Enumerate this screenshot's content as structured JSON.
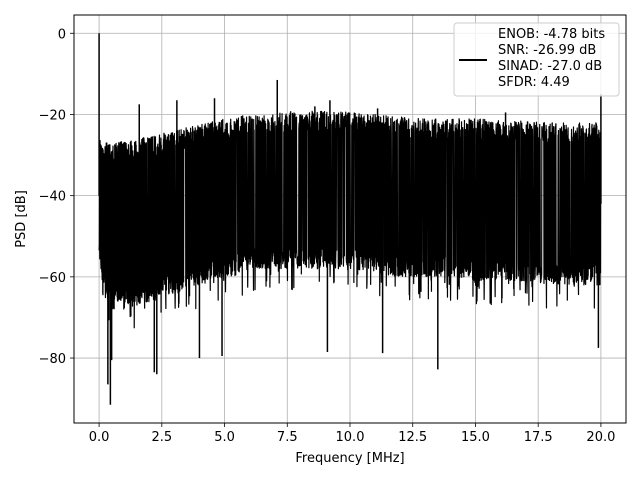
{
  "chart_data": {
    "type": "line",
    "title": "",
    "xlabel": "Frequency [MHz]",
    "ylabel": "PSD [dB]",
    "xlim": [
      -1.0,
      21.0
    ],
    "ylim": [
      -96.0,
      4.5
    ],
    "xticks": [
      0.0,
      2.5,
      5.0,
      7.5,
      10.0,
      12.5,
      15.0,
      17.5,
      20.0
    ],
    "xtick_labels": [
      "0.0",
      "2.5",
      "5.0",
      "7.5",
      "10.0",
      "12.5",
      "15.0",
      "17.5",
      "20.0"
    ],
    "yticks": [
      0,
      -20,
      -40,
      -60,
      -80
    ],
    "ytick_labels": [
      "0",
      "−20",
      "−40",
      "−60",
      "−80"
    ],
    "grid": true,
    "legend": {
      "placement": "top-right",
      "entries": [
        "ENOB: -4.78 bits",
        "SNR: -26.99 dB",
        "SINAD: -27.0 dB",
        "SFDR: 4.49"
      ]
    },
    "series": [
      {
        "color": "#000000",
        "upper_envelope": {
          "x": [
            0.0,
            0.2,
            0.5,
            1.0,
            2.0,
            3.0,
            4.0,
            5.0,
            6.0,
            7.0,
            8.0,
            9.0,
            10.0,
            11.0,
            12.0,
            13.0,
            14.0,
            15.0,
            16.0,
            17.0,
            18.0,
            19.0,
            20.0
          ],
          "y": [
            -25,
            -27,
            -27,
            -26.5,
            -25.5,
            -24,
            -22.5,
            -21,
            -20,
            -19.5,
            -19,
            -19,
            -19.5,
            -20,
            -20.5,
            -21,
            -21,
            -21,
            -21.5,
            -21.5,
            -22,
            -22,
            -22
          ]
        },
        "lower_envelope": {
          "x": [
            0.0,
            0.2,
            0.5,
            1.0,
            2.0,
            3.0,
            4.0,
            5.0,
            6.0,
            7.0,
            8.0,
            9.0,
            10.0,
            11.0,
            12.0,
            13.0,
            14.0,
            15.0,
            16.0,
            17.0,
            18.0,
            19.0,
            20.0
          ],
          "y": [
            -55,
            -65,
            -68,
            -68,
            -66,
            -64,
            -62,
            -60,
            -58,
            -58,
            -58,
            -58,
            -58,
            -59,
            -60,
            -60,
            -60,
            -61,
            -61,
            -61,
            -62,
            -62,
            -62
          ]
        },
        "peaks": [
          {
            "x": 0.0,
            "y": 0.0
          },
          {
            "x": 1.6,
            "y": -17.5
          },
          {
            "x": 3.1,
            "y": -16.5
          },
          {
            "x": 4.6,
            "y": -16.0
          },
          {
            "x": 7.1,
            "y": -11.5
          },
          {
            "x": 8.6,
            "y": -18.0
          },
          {
            "x": 9.2,
            "y": -16.5
          },
          {
            "x": 11.1,
            "y": -18.5
          },
          {
            "x": 16.2,
            "y": -19.5
          },
          {
            "x": 20.0,
            "y": -15.0
          }
        ],
        "dips": [
          {
            "x": 0.35,
            "y": -86.5
          },
          {
            "x": 0.45,
            "y": -91.5
          },
          {
            "x": 0.5,
            "y": -80.5
          },
          {
            "x": 2.2,
            "y": -83.5
          },
          {
            "x": 2.3,
            "y": -84.0
          },
          {
            "x": 4.0,
            "y": -80.0
          },
          {
            "x": 4.9,
            "y": -79.5
          },
          {
            "x": 9.1,
            "y": -78.5
          },
          {
            "x": 11.3,
            "y": -78.8
          },
          {
            "x": 13.5,
            "y": -82.8
          },
          {
            "x": 19.9,
            "y": -77.5
          }
        ]
      }
    ]
  }
}
